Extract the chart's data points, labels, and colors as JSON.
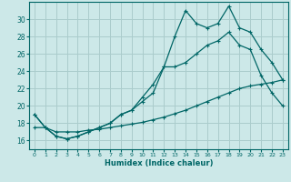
{
  "xlabel": "Humidex (Indice chaleur)",
  "background_color": "#cce8e8",
  "grid_color": "#aacccc",
  "line_color": "#006666",
  "xlim": [
    -0.5,
    23.5
  ],
  "ylim": [
    15.0,
    32.0
  ],
  "yticks": [
    16,
    18,
    20,
    22,
    24,
    26,
    28,
    30
  ],
  "xticks": [
    0,
    1,
    2,
    3,
    4,
    5,
    6,
    7,
    8,
    9,
    10,
    11,
    12,
    13,
    14,
    15,
    16,
    17,
    18,
    19,
    20,
    21,
    22,
    23
  ],
  "series1_x": [
    0,
    1,
    2,
    3,
    4,
    5,
    6,
    7,
    8,
    9,
    10,
    11,
    12,
    13,
    14,
    15,
    16,
    17,
    18,
    19,
    20,
    21,
    22,
    23
  ],
  "series1_y": [
    19.0,
    17.5,
    16.5,
    16.2,
    16.5,
    17.0,
    17.5,
    18.0,
    19.0,
    19.5,
    20.5,
    21.5,
    24.5,
    28.0,
    31.0,
    29.5,
    29.0,
    29.5,
    31.5,
    29.0,
    28.5,
    26.5,
    25.0,
    23.0
  ],
  "series2_x": [
    0,
    1,
    2,
    3,
    4,
    5,
    6,
    7,
    8,
    9,
    10,
    11,
    12,
    13,
    14,
    15,
    16,
    17,
    18,
    19,
    20,
    21,
    22,
    23
  ],
  "series2_y": [
    19.0,
    17.5,
    16.5,
    16.2,
    16.5,
    17.0,
    17.5,
    18.0,
    19.0,
    19.5,
    21.0,
    22.5,
    24.5,
    24.5,
    25.0,
    26.0,
    27.0,
    27.5,
    28.5,
    27.0,
    26.5,
    23.5,
    21.5,
    20.0
  ],
  "series3_x": [
    0,
    1,
    2,
    3,
    4,
    5,
    6,
    7,
    8,
    9,
    10,
    11,
    12,
    13,
    14,
    15,
    16,
    17,
    18,
    19,
    20,
    21,
    22,
    23
  ],
  "series3_y": [
    17.5,
    17.5,
    17.0,
    17.0,
    17.0,
    17.2,
    17.3,
    17.5,
    17.7,
    17.9,
    18.1,
    18.4,
    18.7,
    19.1,
    19.5,
    20.0,
    20.5,
    21.0,
    21.5,
    22.0,
    22.3,
    22.5,
    22.7,
    23.0
  ]
}
